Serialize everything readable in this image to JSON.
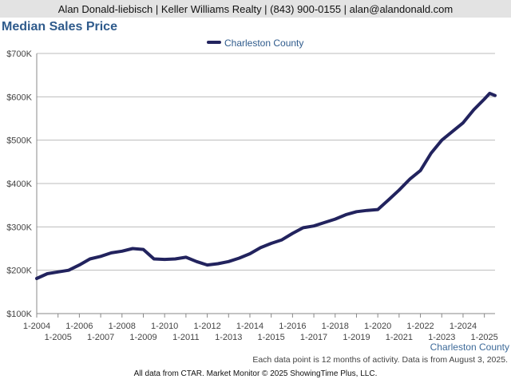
{
  "header": {
    "contact_line": "Alan Donald-liebisch | Keller Williams Realty | (843) 900-0155 | alan@alandonald.com"
  },
  "footer": {
    "note": "Each data point is 12 months of activity. Data is from August 3, 2025.",
    "source": "All data from CTAR. Market Monitor © 2025 ShowingTime Plus, LLC."
  },
  "chart_data": {
    "type": "line",
    "title": "Median Sales Price",
    "xlabel": "",
    "ylabel": "",
    "area_label": "Charleston County",
    "ylim": [
      100000,
      700000
    ],
    "y_ticks": [
      {
        "value": 100000,
        "label": "$100K"
      },
      {
        "value": 200000,
        "label": "$200K"
      },
      {
        "value": 300000,
        "label": "$300K"
      },
      {
        "value": 400000,
        "label": "$400K"
      },
      {
        "value": 500000,
        "label": "$500K"
      },
      {
        "value": 600000,
        "label": "$600K"
      },
      {
        "value": 700000,
        "label": "$700K"
      }
    ],
    "xlim": [
      "2004-01",
      "2025-07"
    ],
    "x_ticks": [
      {
        "date": "2004-01",
        "label": "1-2004"
      },
      {
        "date": "2005-01",
        "label": "1-2005"
      },
      {
        "date": "2006-01",
        "label": "1-2006"
      },
      {
        "date": "2007-01",
        "label": "1-2007"
      },
      {
        "date": "2008-01",
        "label": "1-2008"
      },
      {
        "date": "2009-01",
        "label": "1-2009"
      },
      {
        "date": "2010-01",
        "label": "1-2010"
      },
      {
        "date": "2011-01",
        "label": "1-2011"
      },
      {
        "date": "2012-01",
        "label": "1-2012"
      },
      {
        "date": "2013-01",
        "label": "1-2013"
      },
      {
        "date": "2014-01",
        "label": "1-2014"
      },
      {
        "date": "2015-01",
        "label": "1-2015"
      },
      {
        "date": "2016-01",
        "label": "1-2016"
      },
      {
        "date": "2017-01",
        "label": "1-2017"
      },
      {
        "date": "2018-01",
        "label": "1-2018"
      },
      {
        "date": "2019-01",
        "label": "1-2019"
      },
      {
        "date": "2020-01",
        "label": "1-2020"
      },
      {
        "date": "2021-01",
        "label": "1-2021"
      },
      {
        "date": "2022-01",
        "label": "1-2022"
      },
      {
        "date": "2023-01",
        "label": "1-2023"
      },
      {
        "date": "2024-01",
        "label": "1-2024"
      },
      {
        "date": "2025-01",
        "label": "1-2025"
      }
    ],
    "grid": true,
    "legend_position": "top-center",
    "colors": {
      "series": "#22235e",
      "grid": "#bbbbbb",
      "axis": "#888888",
      "tick_text": "#444444",
      "title": "#2f5b8c",
      "area_label": "#3d6a99"
    },
    "series": [
      {
        "name": "Charleston County",
        "x": [
          "2004-01",
          "2004-07",
          "2005-01",
          "2005-07",
          "2006-01",
          "2006-07",
          "2007-01",
          "2007-07",
          "2008-01",
          "2008-07",
          "2009-01",
          "2009-07",
          "2010-01",
          "2010-07",
          "2011-01",
          "2011-07",
          "2012-01",
          "2012-07",
          "2013-01",
          "2013-07",
          "2014-01",
          "2014-07",
          "2015-01",
          "2015-07",
          "2016-01",
          "2016-07",
          "2017-01",
          "2017-07",
          "2018-01",
          "2018-07",
          "2019-01",
          "2019-07",
          "2020-01",
          "2020-07",
          "2021-01",
          "2021-07",
          "2022-01",
          "2022-07",
          "2023-01",
          "2023-07",
          "2024-01",
          "2024-07",
          "2025-01",
          "2025-04",
          "2025-07"
        ],
        "values": [
          181000,
          192000,
          196000,
          200000,
          212000,
          226000,
          232000,
          240000,
          244000,
          250000,
          248000,
          226000,
          225000,
          226000,
          230000,
          220000,
          212000,
          215000,
          220000,
          228000,
          238000,
          252000,
          262000,
          270000,
          285000,
          298000,
          302000,
          310000,
          318000,
          328000,
          335000,
          338000,
          340000,
          362000,
          385000,
          410000,
          430000,
          470000,
          500000,
          520000,
          540000,
          570000,
          595000,
          608000,
          603000
        ]
      }
    ]
  }
}
